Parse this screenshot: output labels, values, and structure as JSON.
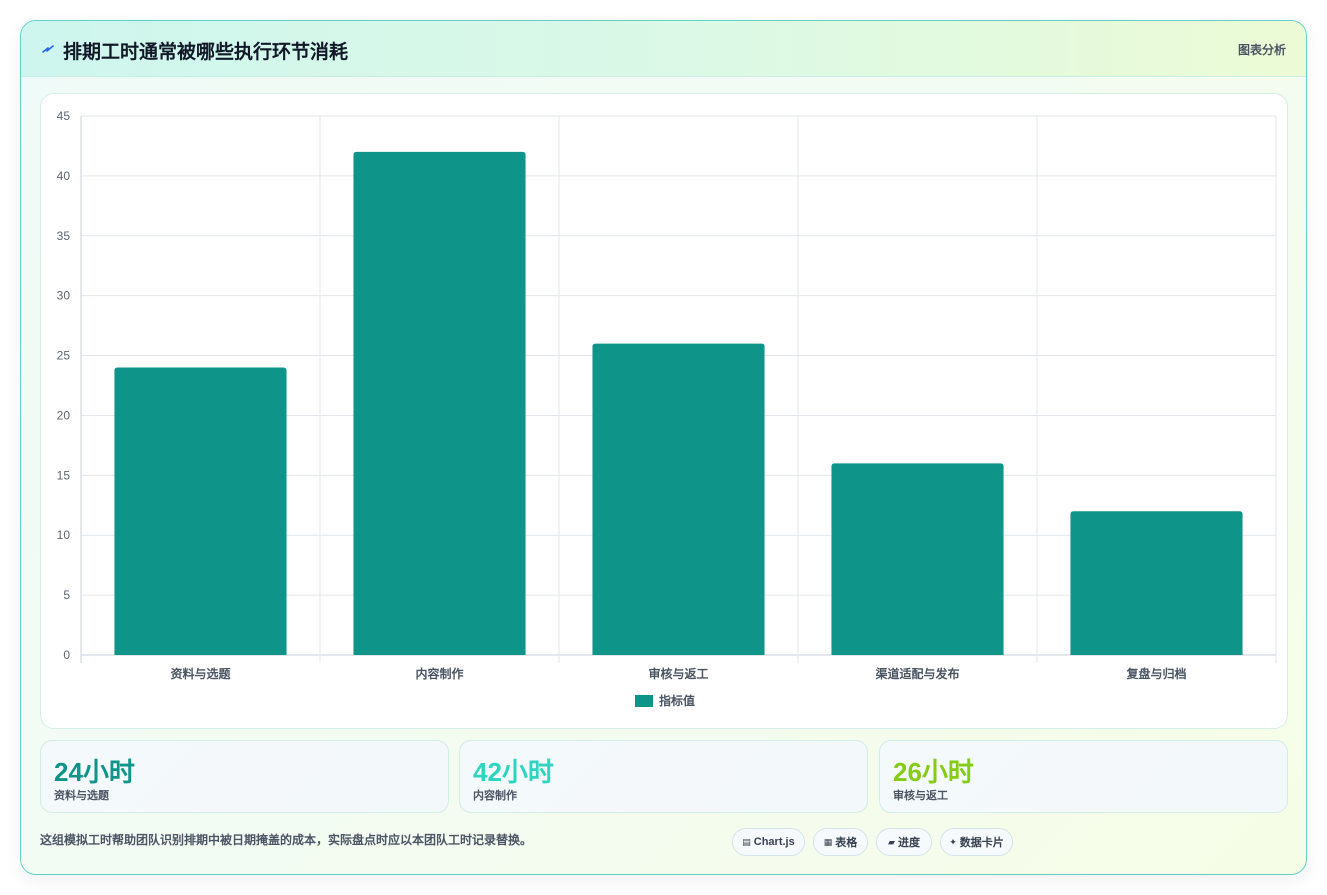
{
  "header": {
    "title": "排期工时通常被哪些执行环节消耗",
    "tag": "图表分析",
    "icon": "bolt-icon"
  },
  "chart_data": {
    "type": "bar",
    "categories": [
      "资料与选题",
      "内容制作",
      "审核与返工",
      "渠道适配与发布",
      "复盘与归档"
    ],
    "series": [
      {
        "name": "指标值",
        "values": [
          24,
          42,
          26,
          16,
          12
        ],
        "color": "#0e9488"
      }
    ],
    "ylim": [
      0,
      45
    ],
    "yticks": [
      0,
      5,
      10,
      15,
      20,
      25,
      30,
      35,
      40,
      45
    ],
    "grid": true,
    "legend": "bottom"
  },
  "stats": [
    {
      "value": "24小时",
      "label": "资料与选题",
      "color": "#0e9488"
    },
    {
      "value": "42小时",
      "label": "内容制作",
      "color": "#2dd4bf"
    },
    {
      "value": "26小时",
      "label": "审核与返工",
      "color": "#84cc16"
    }
  ],
  "footer": {
    "note": "这组模拟工时帮助团队识别排期中被日期掩盖的成本，实际盘点时应以本团队工时记录替换。",
    "pills": [
      {
        "icon": "▤",
        "icon_name": "chart-icon",
        "label": "Chart.js"
      },
      {
        "icon": "▦",
        "icon_name": "table-icon",
        "label": "表格"
      },
      {
        "icon": "▰",
        "icon_name": "progress-icon",
        "label": "进度"
      },
      {
        "icon": "✦",
        "icon_name": "sparkle-icon",
        "label": "数据卡片"
      }
    ]
  }
}
